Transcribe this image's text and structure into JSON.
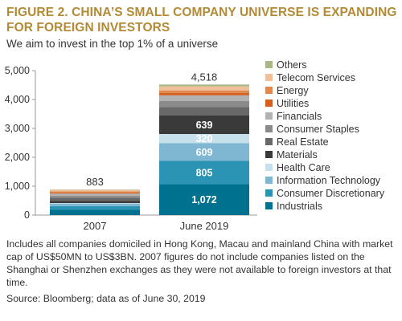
{
  "title": "FIGURE 2. CHINA’S SMALL COMPANY UNIVERSE IS EXPANDING FOR FOREIGN INVESTORS",
  "subtitle": "We aim to invest in the top 1% of a universe",
  "note": "Includes all companies domiciled in Hong Kong, Macau and mainland China with market cap of US$50MN to US$3BN. 2007 figures do not include companies listed on the Shanghai or Shenzhen exchanges as they were not available to foreign investors at that time.",
  "source": "Source: Bloomberg; data as of June 30, 2019",
  "chart_data": {
    "type": "bar",
    "stacked": true,
    "categories": [
      "2007",
      "June 2019"
    ],
    "totals": [
      883,
      4518
    ],
    "ylim": [
      0,
      5000
    ],
    "yticks": [
      0,
      1000,
      2000,
      3000,
      4000,
      5000
    ],
    "ytick_labels": [
      "0",
      "1,000",
      "2,000",
      "3,000",
      "4,000",
      "5,000"
    ],
    "grid": false,
    "legend_position": "right",
    "series": [
      {
        "name": "Industrials",
        "color": "#00728f",
        "values": [
          180,
          1072
        ],
        "labels": [
          "",
          "1,072"
        ]
      },
      {
        "name": "Consumer Discretionary",
        "color": "#2b93b3",
        "values": [
          130,
          805
        ],
        "labels": [
          "",
          "805"
        ]
      },
      {
        "name": "Information Technology",
        "color": "#7fb6d1",
        "values": [
          80,
          609
        ],
        "labels": [
          "",
          "609"
        ]
      },
      {
        "name": "Health Care",
        "color": "#c6e0ec",
        "values": [
          25,
          320
        ],
        "labels": [
          "",
          "320"
        ]
      },
      {
        "name": "Materials",
        "color": "#3a3a3a",
        "values": [
          80,
          639
        ],
        "labels": [
          "",
          "639"
        ]
      },
      {
        "name": "Real Estate",
        "color": "#686868",
        "values": [
          110,
          300
        ],
        "labels": [
          "",
          ""
        ]
      },
      {
        "name": "Consumer Staples",
        "color": "#8b8b8b",
        "values": [
          60,
          200
        ],
        "labels": [
          "",
          ""
        ]
      },
      {
        "name": "Financials",
        "color": "#b2b2b2",
        "values": [
          80,
          200
        ],
        "labels": [
          "",
          ""
        ]
      },
      {
        "name": "Utilities",
        "color": "#d35f20",
        "values": [
          40,
          80
        ],
        "labels": [
          "",
          ""
        ]
      },
      {
        "name": "Energy",
        "color": "#e0884d",
        "values": [
          40,
          90
        ],
        "labels": [
          "",
          ""
        ]
      },
      {
        "name": "Telecom Services",
        "color": "#efbf9a",
        "values": [
          40,
          140
        ],
        "labels": [
          "",
          ""
        ]
      },
      {
        "name": "Others",
        "color": "#a9b785",
        "values": [
          18,
          63
        ],
        "labels": [
          "",
          ""
        ]
      }
    ]
  }
}
